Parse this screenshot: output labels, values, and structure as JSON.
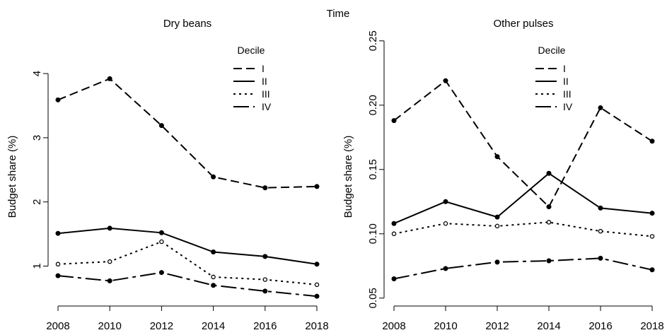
{
  "figure_title": "Time",
  "chart_data": [
    {
      "type": "line",
      "title": "Dry beans",
      "xlabel": "",
      "ylabel": "Budget share (%)",
      "x": [
        2008,
        2010,
        2012,
        2014,
        2016,
        2018
      ],
      "xticks": [
        "2008",
        "2010",
        "2012",
        "2014",
        "2016",
        "2018"
      ],
      "yticks": [
        1,
        2,
        3,
        4
      ],
      "ytick_labels": [
        "1",
        "2",
        "3",
        "4"
      ],
      "ylim": [
        0.6,
        4.6
      ],
      "legend": {
        "title": "Decile",
        "position": "top-right"
      },
      "series": [
        {
          "name": "I",
          "style": "dashed",
          "marker": "filled",
          "values": [
            3.59,
            3.92,
            3.19,
            2.39,
            2.22,
            2.24
          ]
        },
        {
          "name": "II",
          "style": "solid",
          "marker": "filled",
          "values": [
            1.51,
            1.59,
            1.52,
            1.22,
            1.15,
            1.03
          ]
        },
        {
          "name": "III",
          "style": "dotted",
          "marker": "open",
          "values": [
            1.03,
            1.07,
            1.38,
            0.83,
            0.79,
            0.71
          ]
        },
        {
          "name": "IV",
          "style": "longdash",
          "marker": "filled",
          "values": [
            0.85,
            0.77,
            0.9,
            0.7,
            0.61,
            0.53
          ]
        }
      ]
    },
    {
      "type": "line",
      "title": "Other pulses",
      "xlabel": "",
      "ylabel": "Budget share (%)",
      "x": [
        2008,
        2010,
        2012,
        2014,
        2016,
        2018
      ],
      "xticks": [
        "2008",
        "2010",
        "2012",
        "2014",
        "2016",
        "2018"
      ],
      "yticks": [
        0.05,
        0.1,
        0.15,
        0.2,
        0.25
      ],
      "ytick_labels": [
        "0.05",
        "0.10",
        "0.15",
        "0.20",
        "0.25"
      ],
      "ylim": [
        0.05,
        0.25
      ],
      "legend": {
        "title": "Decile",
        "position": "top-right"
      },
      "series": [
        {
          "name": "I",
          "style": "dashed",
          "marker": "filled",
          "values": [
            0.188,
            0.219,
            0.16,
            0.121,
            0.198,
            0.172
          ]
        },
        {
          "name": "II",
          "style": "solid",
          "marker": "filled",
          "values": [
            0.108,
            0.125,
            0.113,
            0.147,
            0.12,
            0.116
          ]
        },
        {
          "name": "III",
          "style": "dotted",
          "marker": "open",
          "values": [
            0.1,
            0.108,
            0.106,
            0.109,
            0.102,
            0.098
          ]
        },
        {
          "name": "IV",
          "style": "longdash",
          "marker": "filled",
          "values": [
            0.065,
            0.073,
            0.078,
            0.079,
            0.081,
            0.072
          ]
        }
      ]
    }
  ]
}
